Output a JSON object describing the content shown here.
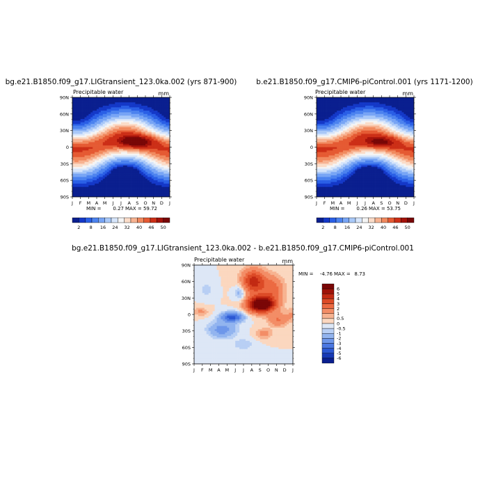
{
  "figure": {
    "panels": [
      {
        "id": "lig",
        "title": "bg.e21.B1850.f09_g17.LIGtransient_123.0ka.002 (yrs 871-900)",
        "variable": "Precipitable water",
        "units": "mm",
        "min_label": "MIN =",
        "min_value": "0.27",
        "max_label": "MAX =",
        "max_value": "59.72"
      },
      {
        "id": "pi",
        "title": "b.e21.B1850.f09_g17.CMIP6-piControl.001 (yrs 1171-1200)",
        "variable": "Precipitable water",
        "units": "mm",
        "min_label": "MIN =",
        "min_value": "0.26",
        "max_label": "MAX =",
        "max_value": "53.75"
      },
      {
        "id": "diff",
        "title": "bg.e21.B1850.f09_g17.LIGtransient_123.0ka.002 - b.e21.B1850.f09_g17.CMIP6-piControl.001",
        "variable": "Precipitable water",
        "units": "mm",
        "min_label": "MIN =",
        "min_value": "-4.76",
        "max_label": "MAX =",
        "max_value": "8.73"
      }
    ]
  },
  "chart_data": [
    {
      "type": "heatmap",
      "panel": "lig",
      "x_ticks": [
        "J",
        "F",
        "M",
        "A",
        "M",
        "J",
        "J",
        "A",
        "S",
        "O",
        "N",
        "D",
        "J"
      ],
      "y_ticks": [
        "90N",
        "60N",
        "30N",
        "0",
        "30S",
        "60S",
        "90S"
      ],
      "y_range": [
        -90,
        90
      ],
      "colorbar": {
        "orientation": "horizontal",
        "levels": [
          "2",
          "8",
          "16",
          "24",
          "32",
          "40",
          "46",
          "50"
        ],
        "colors": [
          "#0a1f8f",
          "#1438c8",
          "#2a5fe6",
          "#4c83ef",
          "#78a5f5",
          "#a9c8f8",
          "#d6e5fb",
          "#f4f4f4",
          "#fbdcc8",
          "#f7b392",
          "#f18a5f",
          "#e55a33",
          "#cc2f17",
          "#a4130b",
          "#780707"
        ]
      },
      "field": {
        "equator_max_approx": 58,
        "peak_month": "Aug-Sep",
        "peak_lat": 10
      }
    },
    {
      "type": "heatmap",
      "panel": "pi",
      "x_ticks": [
        "J",
        "F",
        "M",
        "A",
        "M",
        "J",
        "J",
        "A",
        "S",
        "O",
        "N",
        "D",
        "J"
      ],
      "y_ticks": [
        "90N",
        "60N",
        "30N",
        "0",
        "30S",
        "60S",
        "90S"
      ],
      "y_range": [
        -90,
        90
      ],
      "colorbar": {
        "orientation": "horizontal",
        "levels": [
          "2",
          "8",
          "16",
          "24",
          "32",
          "40",
          "46",
          "50"
        ],
        "colors": [
          "#0a1f8f",
          "#1438c8",
          "#2a5fe6",
          "#4c83ef",
          "#78a5f5",
          "#a9c8f8",
          "#d6e5fb",
          "#f4f4f4",
          "#fbdcc8",
          "#f7b392",
          "#f18a5f",
          "#e55a33",
          "#cc2f17",
          "#a4130b",
          "#780707"
        ]
      },
      "field": {
        "equator_max_approx": 52,
        "peak_month": "Aug",
        "peak_lat": 8
      }
    },
    {
      "type": "heatmap",
      "panel": "diff",
      "x_ticks": [
        "J",
        "F",
        "M",
        "A",
        "M",
        "J",
        "J",
        "A",
        "S",
        "O",
        "N",
        "D",
        "J"
      ],
      "y_ticks": [
        "90N",
        "60N",
        "30N",
        "0",
        "30S",
        "60S",
        "90S"
      ],
      "y_range": [
        -90,
        90
      ],
      "colorbar": {
        "orientation": "vertical",
        "levels": [
          "6",
          "5",
          "4",
          "3",
          "2",
          "1",
          "0.5",
          "0",
          "-0.5",
          "-1",
          "-2",
          "-3",
          "-4",
          "-5",
          "-6"
        ],
        "colors": [
          "#7a0606",
          "#9e1208",
          "#c22a13",
          "#dc4a26",
          "#ec6a42",
          "#f38d66",
          "#f7b391",
          "#fbd7bf",
          "#dde7f6",
          "#b8cff4",
          "#92b4ef",
          "#6e97ea",
          "#4b78e2",
          "#2c58d3",
          "#1739b5",
          "#0a1f8f"
        ]
      },
      "features": [
        {
          "name": "positive anomaly",
          "months": "Jul-Oct",
          "lat_range": [
            0,
            90
          ],
          "peak": 8.7
        },
        {
          "name": "negative anomaly",
          "months": "Feb-Jun",
          "lat_range": [
            -50,
            10
          ],
          "peak": -4.8
        }
      ]
    }
  ]
}
